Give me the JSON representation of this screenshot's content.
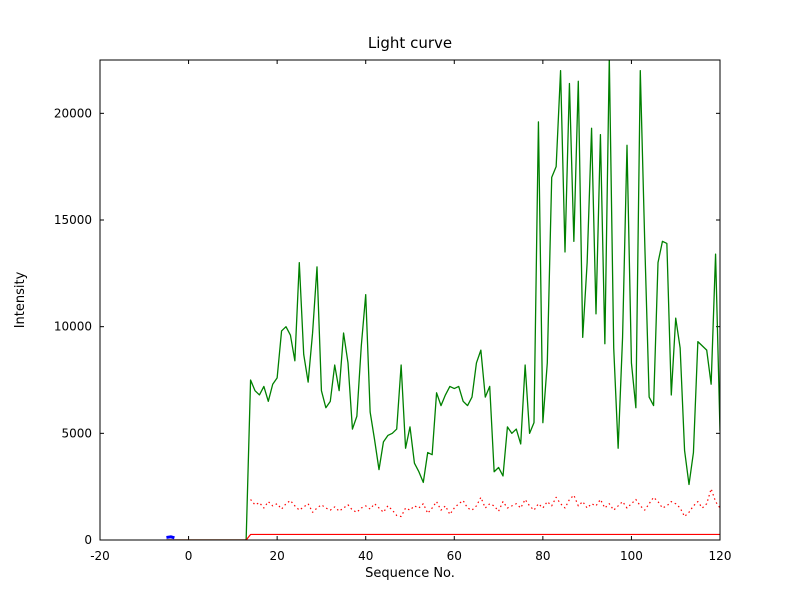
{
  "figure": {
    "background": "#ffffff",
    "axis_color": "#000000"
  },
  "chart_data": {
    "type": "line",
    "title": "Light curve",
    "xlabel": "Sequence No.",
    "ylabel": "Intensity",
    "xlim": [
      -20,
      120
    ],
    "ylim": [
      0,
      22500
    ],
    "xticks": [
      -20,
      0,
      20,
      40,
      60,
      80,
      100,
      120
    ],
    "yticks": [
      0,
      5000,
      10000,
      15000,
      20000
    ],
    "grid": false,
    "legend_position": "none",
    "series": [
      {
        "name": "source-intensity-green-solid",
        "color": "#008000",
        "style": "solid",
        "width": 1.3,
        "x_start": -5,
        "x_step": 1,
        "y": [
          0,
          0,
          0,
          0,
          0,
          0,
          0,
          0,
          0,
          0,
          0,
          0,
          0,
          0,
          0,
          0,
          0,
          0,
          0,
          7500,
          7000,
          6800,
          7200,
          6500,
          7300,
          7600,
          9800,
          10000,
          9600,
          8400,
          13000,
          8700,
          7400,
          9700,
          12800,
          7000,
          6200,
          6500,
          8200,
          7000,
          9700,
          8300,
          5200,
          5800,
          9100,
          11500,
          6000,
          4700,
          3300,
          4600,
          4900,
          5000,
          5200,
          8200,
          4300,
          5300,
          3600,
          3200,
          2700,
          4100,
          4000,
          6900,
          6300,
          6800,
          7200,
          7100,
          7200,
          6500,
          6300,
          6700,
          8300,
          8900,
          6700,
          7200,
          3200,
          3400,
          3000,
          5300,
          5000,
          5200,
          4500,
          8200,
          5000,
          5500,
          19600,
          5500,
          8300,
          17000,
          17500,
          22000,
          13500,
          21400,
          14000,
          21500,
          9500,
          13000,
          19300,
          10600,
          19000,
          9200,
          22600,
          9000,
          4300,
          9500,
          18500,
          8300,
          6200,
          22000,
          14000,
          6700,
          6300,
          13000,
          14000,
          13900,
          6800,
          10400,
          9000,
          4200,
          2600,
          4100,
          9300,
          9100,
          8900,
          7300,
          13400,
          5100
        ]
      },
      {
        "name": "sky-level-red-dotted",
        "color": "#ff0000",
        "style": "dotted",
        "width": 1.2,
        "x_start": 14,
        "x_step": 1,
        "y": [
          1900,
          1650,
          1750,
          1500,
          1800,
          1600,
          1700,
          1450,
          1700,
          1850,
          1600,
          1400,
          1550,
          1700,
          1300,
          1500,
          1650,
          1500,
          1400,
          1550,
          1350,
          1500,
          1650,
          1400,
          1300,
          1500,
          1600,
          1450,
          1700,
          1500,
          1300,
          1600,
          1400,
          1150,
          1100,
          1500,
          1400,
          1600,
          1500,
          1700,
          1250,
          1500,
          1800,
          1400,
          1600,
          1200,
          1500,
          1700,
          1850,
          1500,
          1400,
          1600,
          2000,
          1500,
          1700,
          1600,
          1350,
          1800,
          1500,
          1600,
          1700,
          1500,
          1900,
          1600,
          1400,
          1700,
          1500,
          1800,
          1600,
          2000,
          1700,
          1500,
          1900,
          2100,
          1600,
          1800,
          1500,
          1700,
          1600,
          1900,
          1500,
          1700,
          1400,
          1600,
          1800,
          1500,
          1700,
          1900,
          1600,
          1400,
          1700,
          2000,
          1800,
          1500,
          1600,
          1800,
          1700,
          1500,
          1100,
          1300,
          1600,
          1800,
          1500,
          1700,
          2400,
          1800,
          1500
        ]
      },
      {
        "name": "background-level-red-solid",
        "color": "#ff0000",
        "style": "solid",
        "width": 1.2,
        "x": [
          -5,
          13,
          14,
          120
        ],
        "y": [
          0,
          0,
          260,
          260
        ]
      },
      {
        "name": "marker-blue-segment",
        "color": "#0000ff",
        "style": "solid",
        "width": 3,
        "x": [
          -5,
          -4,
          -3.2
        ],
        "y": [
          120,
          150,
          100
        ]
      }
    ]
  }
}
